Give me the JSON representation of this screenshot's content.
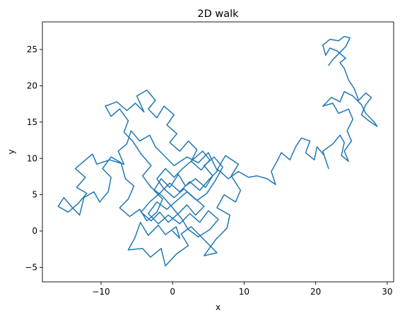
{
  "chart_data": {
    "type": "line",
    "title": "2D walk",
    "xlabel": "x",
    "ylabel": "y",
    "xlim": [
      -18.2,
      30.9
    ],
    "ylim": [
      -7.0,
      28.8
    ],
    "xticks": [
      -10,
      0,
      10,
      20,
      30
    ],
    "yticks": [
      -5,
      0,
      5,
      10,
      15,
      20,
      25
    ],
    "grid": false,
    "legend": "none",
    "series": [
      {
        "color": "#1f77b4",
        "points": [
          [
            0,
            0
          ],
          [
            1,
            -1
          ],
          [
            0.5,
            0.6
          ],
          [
            -1,
            -0.5
          ],
          [
            -2,
            0.8
          ],
          [
            -3.4,
            -0.6
          ],
          [
            -4.5,
            1.2
          ],
          [
            -5.3,
            -1.0
          ],
          [
            -6.2,
            -2.6
          ],
          [
            -4.2,
            -2.4
          ],
          [
            -3.1,
            -3.6
          ],
          [
            -1.6,
            -2.4
          ],
          [
            -1.0,
            -4.8
          ],
          [
            0.5,
            -3.2
          ],
          [
            2.2,
            -2.0
          ],
          [
            1.2,
            -0.4
          ],
          [
            2.6,
            0.6
          ],
          [
            4.0,
            -0.8
          ],
          [
            5.4,
            -2.2
          ],
          [
            6.2,
            -3.0
          ],
          [
            4.4,
            -3.4
          ],
          [
            6.0,
            -1.2
          ],
          [
            7.6,
            0.4
          ],
          [
            8.0,
            2.2
          ],
          [
            6.2,
            3.2
          ],
          [
            7.2,
            5.0
          ],
          [
            8.8,
            4.0
          ],
          [
            9.5,
            5.6
          ],
          [
            8.2,
            7.6
          ],
          [
            9.2,
            9.2
          ],
          [
            7.4,
            10.4
          ],
          [
            6.2,
            8.4
          ],
          [
            5.0,
            10.8
          ],
          [
            3.6,
            9.4
          ],
          [
            2.0,
            10.2
          ],
          [
            0.2,
            9.0
          ],
          [
            -1.2,
            10.4
          ],
          [
            -2.4,
            11.6
          ],
          [
            -3.2,
            13.2
          ],
          [
            -4.6,
            12.4
          ],
          [
            -5.8,
            13.8
          ],
          [
            -6.4,
            12.0
          ],
          [
            -7.6,
            11.0
          ],
          [
            -6.8,
            9.2
          ],
          [
            -8.8,
            9.8
          ],
          [
            -10.6,
            9.2
          ],
          [
            -11.2,
            10.6
          ],
          [
            -12.4,
            9.6
          ],
          [
            -13.6,
            8.6
          ],
          [
            -12.2,
            7.4
          ],
          [
            -13.4,
            6.0
          ],
          [
            -12.0,
            5.2
          ],
          [
            -13.2,
            3.8
          ],
          [
            -14.6,
            2.6
          ],
          [
            -16.0,
            3.4
          ],
          [
            -15.2,
            4.6
          ],
          [
            -14.0,
            3.2
          ],
          [
            -13.0,
            2.2
          ],
          [
            -12.4,
            4.6
          ],
          [
            -11.0,
            5.4
          ],
          [
            -10.2,
            4.0
          ],
          [
            -9.0,
            5.4
          ],
          [
            -8.6,
            7.4
          ],
          [
            -9.8,
            8.6
          ],
          [
            -8.6,
            10.2
          ],
          [
            -7.2,
            9.4
          ],
          [
            -6.6,
            7.2
          ],
          [
            -5.4,
            6.2
          ],
          [
            -6.2,
            4.4
          ],
          [
            -7.4,
            3.2
          ],
          [
            -6.0,
            2.0
          ],
          [
            -4.6,
            3.0
          ],
          [
            -3.6,
            1.4
          ],
          [
            -2.2,
            2.6
          ],
          [
            -1.4,
            4.4
          ],
          [
            -2.6,
            5.6
          ],
          [
            -1.6,
            7.2
          ],
          [
            -0.4,
            6.0
          ],
          [
            0.8,
            7.8
          ],
          [
            1.8,
            6.2
          ],
          [
            3.2,
            7.2
          ],
          [
            4.6,
            6.0
          ],
          [
            5.6,
            7.6
          ],
          [
            4.4,
            9.0
          ],
          [
            5.8,
            10.2
          ],
          [
            7.0,
            8.8
          ],
          [
            6.0,
            7.0
          ],
          [
            4.8,
            5.2
          ],
          [
            3.4,
            4.2
          ],
          [
            2.0,
            5.4
          ],
          [
            0.6,
            4.2
          ],
          [
            -0.8,
            3.0
          ],
          [
            -2.2,
            4.0
          ],
          [
            -3.4,
            2.4
          ],
          [
            -2.0,
            1.0
          ],
          [
            -0.6,
            2.2
          ],
          [
            1.0,
            1.0
          ],
          [
            2.4,
            2.4
          ],
          [
            3.8,
            1.2
          ],
          [
            5.0,
            2.8
          ],
          [
            6.4,
            1.6
          ],
          [
            5.2,
            0.2
          ],
          [
            3.6,
            -0.8
          ],
          [
            2.2,
            0.2
          ],
          [
            1.2,
            1.8
          ],
          [
            0.0,
            3.2
          ],
          [
            -1.4,
            4.8
          ],
          [
            -3.0,
            6.0
          ],
          [
            -4.2,
            7.6
          ],
          [
            -3.0,
            9.0
          ],
          [
            -4.4,
            10.6
          ],
          [
            -5.6,
            12.4
          ],
          [
            -6.8,
            13.6
          ],
          [
            -6.2,
            15.2
          ],
          [
            -7.4,
            16.8
          ],
          [
            -8.6,
            15.8
          ],
          [
            -9.4,
            17.2
          ],
          [
            -7.8,
            17.8
          ],
          [
            -6.4,
            16.6
          ],
          [
            -5.2,
            17.6
          ],
          [
            -4.0,
            16.4
          ],
          [
            -5.0,
            18.6
          ],
          [
            -3.6,
            19.4
          ],
          [
            -2.4,
            18.0
          ],
          [
            -3.4,
            16.8
          ],
          [
            -2.2,
            15.6
          ],
          [
            -1.2,
            17.2
          ],
          [
            0.2,
            16.0
          ],
          [
            -0.8,
            14.6
          ],
          [
            0.6,
            13.4
          ],
          [
            -0.4,
            12.2
          ],
          [
            1.0,
            11.0
          ],
          [
            2.2,
            12.4
          ],
          [
            3.4,
            11.2
          ],
          [
            2.6,
            9.6
          ],
          [
            4.0,
            8.4
          ],
          [
            5.2,
            9.8
          ],
          [
            4.2,
            11.0
          ],
          [
            2.8,
            9.8
          ],
          [
            1.4,
            8.6
          ],
          [
            0.2,
            7.4
          ],
          [
            -1.0,
            8.6
          ],
          [
            -2.2,
            7.2
          ],
          [
            -1.2,
            5.8
          ],
          [
            0.2,
            4.6
          ],
          [
            1.6,
            5.8
          ],
          [
            3.0,
            4.6
          ],
          [
            4.4,
            3.4
          ],
          [
            3.2,
            2.2
          ],
          [
            2.0,
            3.6
          ],
          [
            0.8,
            2.4
          ],
          [
            -0.6,
            1.2
          ],
          [
            -1.8,
            2.6
          ],
          [
            -3.0,
            1.4
          ],
          [
            -4.4,
            2.6
          ],
          [
            -3.2,
            4.0
          ],
          [
            -1.8,
            5.2
          ],
          [
            -0.4,
            6.6
          ],
          [
            1.0,
            5.4
          ],
          [
            2.4,
            6.8
          ],
          [
            3.8,
            5.6
          ],
          [
            5.0,
            7.0
          ],
          [
            6.4,
            8.4
          ],
          [
            7.8,
            7.2
          ],
          [
            9.2,
            8.2
          ],
          [
            10.6,
            7.4
          ],
          [
            11.8,
            7.6
          ],
          [
            13.2,
            7.2
          ],
          [
            14.4,
            6.4
          ],
          [
            13.8,
            8.2
          ],
          [
            14.6,
            9.6
          ],
          [
            15.2,
            10.8
          ],
          [
            16.4,
            9.8
          ],
          [
            17.2,
            11.6
          ],
          [
            18.0,
            12.8
          ],
          [
            19.2,
            12.4
          ],
          [
            18.6,
            10.8
          ],
          [
            19.8,
            9.8
          ],
          [
            20.2,
            11.6
          ],
          [
            21.2,
            10.4
          ],
          [
            21.8,
            8.6
          ],
          [
            21.0,
            11.0
          ],
          [
            22.4,
            12.0
          ],
          [
            23.4,
            13.2
          ],
          [
            24.0,
            12.2
          ],
          [
            23.6,
            10.4
          ],
          [
            24.6,
            9.6
          ],
          [
            24.0,
            11.0
          ],
          [
            25.0,
            12.4
          ],
          [
            24.4,
            13.8
          ],
          [
            25.2,
            15.4
          ],
          [
            24.6,
            16.8
          ],
          [
            23.2,
            16.2
          ],
          [
            22.4,
            17.6
          ],
          [
            21.0,
            17.2
          ],
          [
            22.2,
            18.4
          ],
          [
            23.4,
            17.8
          ],
          [
            24.0,
            19.2
          ],
          [
            25.2,
            18.6
          ],
          [
            26.4,
            17.4
          ],
          [
            27.0,
            16.2
          ],
          [
            28.2,
            15.0
          ],
          [
            28.6,
            14.4
          ],
          [
            27.4,
            15.2
          ],
          [
            26.4,
            16.0
          ],
          [
            27.0,
            17.4
          ],
          [
            27.8,
            18.4
          ],
          [
            27.0,
            19.0
          ],
          [
            26.0,
            18.0
          ],
          [
            25.4,
            19.6
          ],
          [
            24.6,
            20.8
          ],
          [
            24.0,
            22.4
          ],
          [
            23.4,
            23.2
          ],
          [
            24.2,
            23.8
          ],
          [
            23.0,
            24.8
          ],
          [
            22.0,
            25.2
          ],
          [
            21.4,
            24.2
          ],
          [
            21.0,
            25.6
          ],
          [
            22.0,
            26.4
          ],
          [
            23.2,
            26.2
          ],
          [
            24.0,
            26.8
          ],
          [
            24.8,
            26.6
          ],
          [
            24.2,
            25.4
          ],
          [
            23.4,
            24.6
          ],
          [
            22.4,
            23.6
          ],
          [
            21.8,
            22.8
          ]
        ]
      }
    ]
  }
}
